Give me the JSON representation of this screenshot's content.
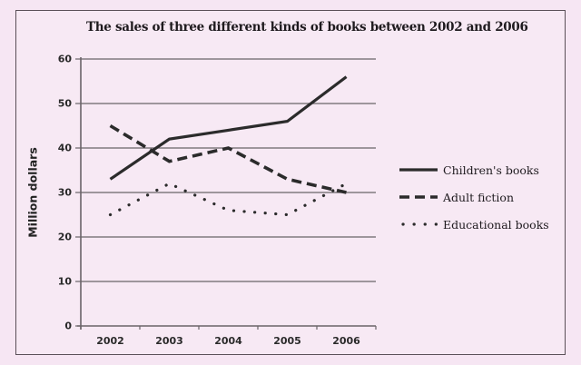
{
  "chart_data": {
    "type": "line",
    "title": "The sales of three different kinds of books between 2002 and 2006",
    "xlabel": "",
    "ylabel": "Million dollars",
    "categories": [
      "2002",
      "2003",
      "2004",
      "2005",
      "2006"
    ],
    "yticks": [
      "0",
      "10",
      "20",
      "30",
      "40",
      "50",
      "60"
    ],
    "ylim": [
      0,
      60
    ],
    "grid": true,
    "legend_position": "right",
    "series": [
      {
        "name": "Children's books",
        "style": "solid",
        "values": [
          33,
          42,
          44,
          46,
          56
        ]
      },
      {
        "name": "Adult fiction",
        "style": "dashed",
        "values": [
          45,
          37,
          40,
          33,
          30
        ]
      },
      {
        "name": "Educational books",
        "style": "dotted",
        "values": [
          25,
          32,
          26,
          25,
          32
        ]
      }
    ]
  },
  "colors": {
    "background": "#f6e6f3",
    "line": "#2b2b2b",
    "grid": "#6a6468"
  }
}
